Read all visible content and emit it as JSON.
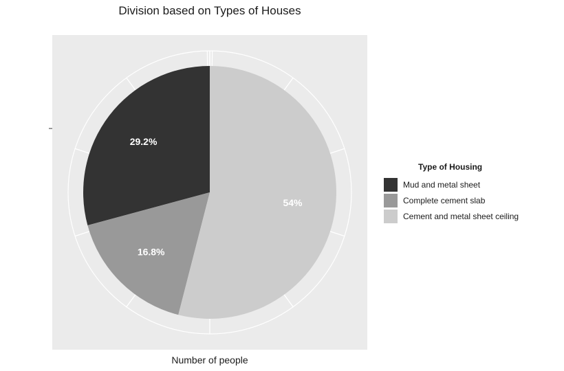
{
  "chart_data": {
    "type": "pie",
    "title": "Division based on Types of Houses",
    "xlabel": "Number of people",
    "ylabel": "",
    "legend": {
      "title": "Type of Housing",
      "position": "right"
    },
    "grid": true,
    "slices": [
      {
        "label": "Mud and metal sheet",
        "value": 29.2,
        "display": "29.2%",
        "color": "#333333"
      },
      {
        "label": "Complete cement slab",
        "value": 16.8,
        "display": "16.8%",
        "color": "#999999"
      },
      {
        "label": "Cement and metal sheet ceiling",
        "value": 54.0,
        "display": "54%",
        "color": "#cccccc"
      }
    ],
    "panel_background": "#ebebeb",
    "label_color": "#ffffff"
  }
}
